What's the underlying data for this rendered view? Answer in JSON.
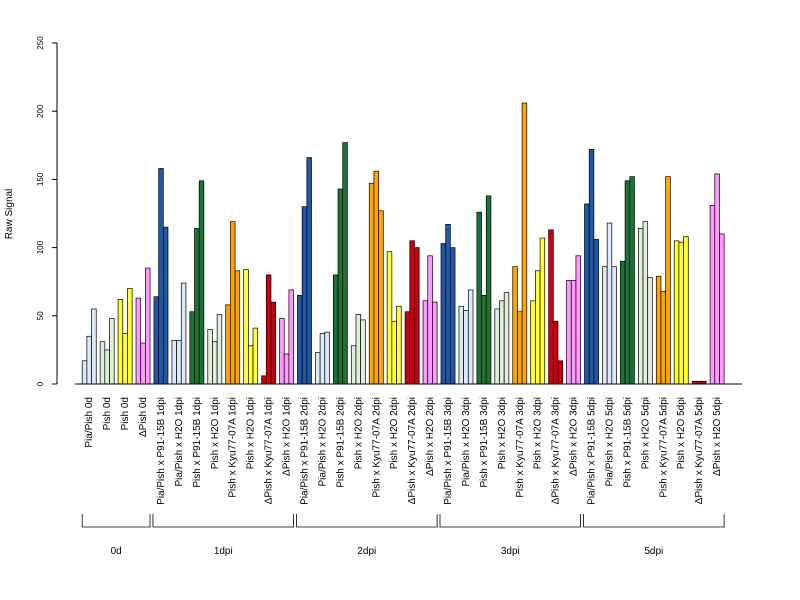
{
  "chart_data": {
    "type": "bar",
    "title": "",
    "xlabel": "",
    "ylabel": "Raw Signal",
    "ylim": [
      0,
      250
    ],
    "yticks": [
      0,
      50,
      100,
      150,
      200,
      250
    ],
    "grid": false,
    "legend": "none",
    "categories": [
      "Pia/Pish 0d",
      "Pish 0d",
      "Pish 0d",
      "ΔPish 0d",
      "Pia/Pish x P91-15B 1dpi",
      "Pia/Pish x H2O 1dpi",
      "Pish x P91-15B 1dpi",
      "Pish x H2O 1dpi",
      "Pish x Kyu77-07A 1dpi",
      "Pish x H2O 1dpi",
      "ΔPish x Kyu77-07A 1dpi",
      "ΔPish x H2O 1dpi",
      "Pia/Pish x P91-15B 2dpi",
      "Pia/Pish x H2O 2dpi",
      "Pish x P91-15B 2dpi",
      "Pish x H2O 2dpi",
      "Pish x Kyu77-07A 2dpi",
      "Pish x H2O 2dpi",
      "ΔPish x Kyu77-07A 2dpi",
      "ΔPish x H2O 2dpi",
      "Pia/Pish x P91-15B 3dpi",
      "Pia/Pish x H2O 3dpi",
      "Pish x P91-15B 3dpi",
      "Pish x H2O 3dpi",
      "Pish x Kyu77-07A 3dpi",
      "Pish x H2O 3dpi",
      "ΔPish x Kyu77-07A 3dpi",
      "ΔPish x H2O 3dpi",
      "Pia/Pish x P91-15B 5dpi",
      "Pia/Pish x H2O 5dpi",
      "Pish x P91-15B 5dpi",
      "Pish x H2O 5dpi",
      "Pish x Kyu77-07A 5dpi",
      "Pish x H2O 5dpi",
      "ΔPish x Kyu77-07A 5dpi",
      "ΔPish x H2O 5dpi"
    ],
    "colors": [
      "#dce9f7",
      "#dff0d8",
      "#ffff33",
      "#ff99ff",
      "#1f58a6",
      "#dce9f7",
      "#1d7335",
      "#dff0d8",
      "#ffa500",
      "#ffff33",
      "#cc0011",
      "#ff99ff",
      "#1f58a6",
      "#dce9f7",
      "#1d7335",
      "#dff0d8",
      "#ffa500",
      "#ffff33",
      "#cc0011",
      "#ff99ff",
      "#1f58a6",
      "#dce9f7",
      "#1d7335",
      "#dff0d8",
      "#ffa500",
      "#ffff33",
      "#cc0011",
      "#ff99ff",
      "#1f58a6",
      "#dce9f7",
      "#1d7335",
      "#dff0d8",
      "#ffa500",
      "#ffff33",
      "#cc0011",
      "#ff99ff"
    ],
    "values": [
      [
        17,
        35,
        55
      ],
      [
        31,
        25,
        48
      ],
      [
        62,
        37,
        70
      ],
      [
        63,
        30,
        85
      ],
      [
        64,
        158,
        115
      ],
      [
        32,
        32,
        74
      ],
      [
        53,
        114,
        149
      ],
      [
        40,
        31,
        51
      ],
      [
        58,
        119,
        83
      ],
      [
        84,
        28,
        41
      ],
      [
        6,
        80,
        60
      ],
      [
        48,
        22,
        69
      ],
      [
        65,
        130,
        166
      ],
      [
        23,
        37,
        38
      ],
      [
        80,
        143,
        177
      ],
      [
        28,
        51,
        47
      ],
      [
        147,
        156,
        127
      ],
      [
        97,
        46,
        57
      ],
      [
        53,
        105,
        100
      ],
      [
        61,
        94,
        60
      ],
      [
        103,
        117,
        100
      ],
      [
        57,
        54,
        69
      ],
      [
        126,
        65,
        138
      ],
      [
        55,
        61,
        67
      ],
      [
        86,
        53,
        206
      ],
      [
        61,
        83,
        107
      ],
      [
        113,
        46,
        17
      ],
      [
        76,
        76,
        94
      ],
      [
        132,
        172,
        106
      ],
      [
        86,
        118,
        86
      ],
      [
        90,
        149,
        152
      ],
      [
        114,
        119,
        78
      ],
      [
        79,
        68,
        152
      ],
      [
        105,
        104,
        108
      ],
      [
        2,
        2,
        2
      ],
      [
        131,
        154,
        110
      ]
    ],
    "groups": [
      {
        "label": "0d",
        "from": 0,
        "to": 3
      },
      {
        "label": "1dpi",
        "from": 4,
        "to": 11
      },
      {
        "label": "2dpi",
        "from": 12,
        "to": 19
      },
      {
        "label": "3dpi",
        "from": 20,
        "to": 27
      },
      {
        "label": "5dpi",
        "from": 28,
        "to": 35
      }
    ]
  }
}
